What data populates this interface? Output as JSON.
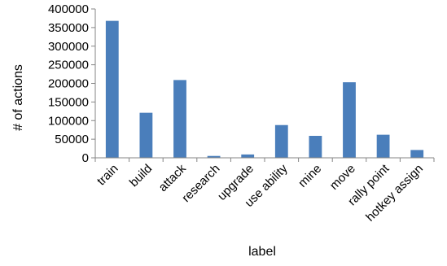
{
  "chart_data": {
    "type": "bar",
    "xlabel": "label",
    "ylabel": "# of actions",
    "ylim": [
      0,
      400000
    ],
    "yticks": [
      0,
      50000,
      100000,
      150000,
      200000,
      250000,
      300000,
      350000,
      400000
    ],
    "ytick_labels": [
      "0",
      "50000",
      "100000",
      "150000",
      "200000",
      "250000",
      "300000",
      "350000",
      "400000"
    ],
    "categories": [
      "train",
      "build",
      "attack",
      "research",
      "upgrade",
      "use ability",
      "mine",
      "move",
      "rally point",
      "hotkey assign"
    ],
    "values": [
      368000,
      121000,
      209000,
      5000,
      9000,
      88000,
      59000,
      203000,
      62000,
      21000
    ],
    "grid": false,
    "legend": "none",
    "bar_color": "#4a7ebb"
  }
}
